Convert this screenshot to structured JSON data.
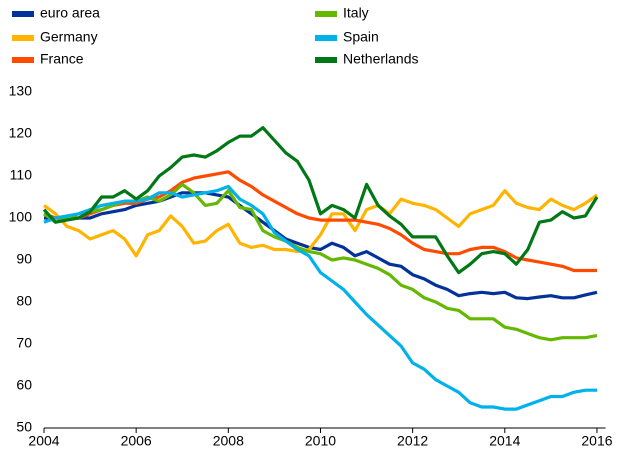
{
  "chart_data": {
    "type": "line",
    "x": [
      2004,
      2004.25,
      2004.5,
      2004.75,
      2005,
      2005.25,
      2005.5,
      2005.75,
      2006,
      2006.25,
      2006.5,
      2006.75,
      2007,
      2007.25,
      2007.5,
      2007.75,
      2008,
      2008.25,
      2008.5,
      2008.75,
      2009,
      2009.25,
      2009.5,
      2009.75,
      2010,
      2010.25,
      2010.5,
      2010.75,
      2011,
      2011.25,
      2011.5,
      2011.75,
      2012,
      2012.25,
      2012.5,
      2012.75,
      2013,
      2013.25,
      2013.5,
      2013.75,
      2014,
      2014.25,
      2014.5,
      2014.75,
      2015,
      2015.25,
      2015.5,
      2015.75,
      2016
    ],
    "series": [
      {
        "name": "euro area",
        "color": "#003299",
        "values": [
          100,
          100,
          100,
          100,
          100,
          101,
          101.5,
          102,
          103,
          103.5,
          104,
          105,
          106,
          106,
          106,
          105.5,
          105,
          103,
          101,
          99,
          97,
          95,
          94,
          93,
          92.5,
          94,
          93,
          91,
          92,
          90.5,
          89,
          88.5,
          86.5,
          85.5,
          84,
          83,
          81.5,
          82,
          82.3,
          82,
          82.3,
          81,
          80.8,
          81.2,
          81.5,
          81,
          81,
          81.7,
          82.3
        ]
      },
      {
        "name": "Germany",
        "color": "#ffb400",
        "values": [
          103,
          101,
          98,
          97,
          95,
          96,
          97,
          95,
          91,
          96,
          97,
          100.5,
          98,
          94,
          94.5,
          97,
          98.5,
          94,
          93,
          93.5,
          92.5,
          92.5,
          92,
          92.5,
          96,
          101,
          101,
          97,
          102,
          103,
          101,
          104.5,
          103.5,
          103,
          102,
          100,
          98,
          101,
          102,
          103,
          106.5,
          103.5,
          102.5,
          102,
          104.5,
          103,
          102,
          103.5,
          105.5
        ]
      },
      {
        "name": "France",
        "color": "#ff4b00",
        "values": [
          101,
          100,
          100,
          100,
          101,
          102,
          103,
          103.5,
          103.5,
          104.5,
          105,
          106.5,
          108.5,
          109.5,
          110,
          110.5,
          111,
          109,
          107.5,
          105.5,
          104,
          102.5,
          101,
          100,
          99.5,
          99.5,
          99.5,
          99.5,
          99,
          98.5,
          97.5,
          96,
          94,
          92.5,
          92,
          91.5,
          91.5,
          92.5,
          93,
          93,
          92,
          90.5,
          90,
          89.5,
          89,
          88.5,
          87.5,
          87.5,
          87.5
        ]
      },
      {
        "name": "Italy",
        "color": "#65b800",
        "values": [
          101,
          99,
          100,
          101,
          101.5,
          102,
          103,
          104,
          104,
          105,
          104,
          105.5,
          108,
          106,
          103,
          103.5,
          106.5,
          102.5,
          102,
          97,
          95.5,
          94.5,
          93,
          92,
          91.5,
          90,
          90.5,
          90,
          89,
          88,
          86.5,
          84,
          83,
          81,
          80,
          78.5,
          78,
          76,
          76,
          76,
          74,
          73.5,
          72.5,
          71.5,
          71,
          71.5,
          71.5,
          71.5,
          72
        ]
      },
      {
        "name": "Spain",
        "color": "#00b1ea",
        "values": [
          99,
          100,
          100.5,
          101,
          102,
          103,
          103.5,
          104,
          104,
          104.5,
          106,
          106,
          105,
          105.5,
          106,
          106.5,
          107.5,
          104.5,
          103,
          101,
          96.5,
          94.5,
          92.5,
          91,
          87,
          85,
          83,
          80,
          77,
          74.5,
          72,
          69.5,
          65.5,
          64,
          61.5,
          60,
          58.5,
          56,
          55,
          55,
          54.5,
          54.5,
          55.5,
          56.5,
          57.5,
          57.5,
          58.5,
          59,
          59
        ]
      },
      {
        "name": "Netherlands",
        "color": "#007816",
        "values": [
          102,
          99,
          99.5,
          100,
          101.5,
          105,
          105,
          106.5,
          104.5,
          106.5,
          110,
          112,
          114.5,
          115,
          114.5,
          116,
          118,
          119.5,
          119.5,
          121.5,
          118.5,
          115.5,
          113.5,
          109,
          101,
          103,
          102,
          100,
          108,
          103,
          100.5,
          98.5,
          95.5,
          95.5,
          95.5,
          91,
          87,
          89,
          91.5,
          92,
          91.5,
          89,
          92.5,
          99,
          99.5,
          101.5,
          100,
          100.5,
          105
        ]
      }
    ],
    "xlim": [
      2004,
      2016.1
    ],
    "xticks": [
      2004,
      2006,
      2008,
      2010,
      2012,
      2014,
      2016
    ],
    "ylim": [
      50,
      130
    ],
    "yticks": [
      50,
      60,
      70,
      80,
      90,
      100,
      110,
      120,
      130
    ],
    "grid": false
  }
}
